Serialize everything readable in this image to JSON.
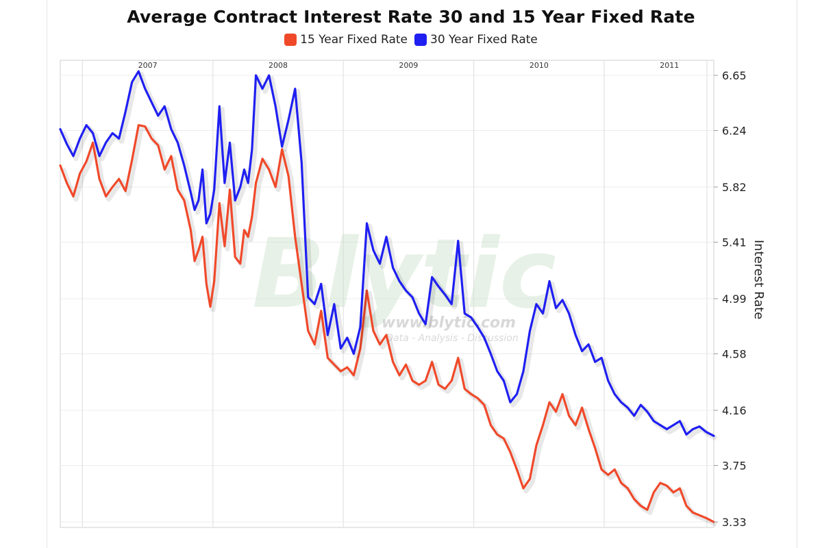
{
  "chart_data": {
    "type": "line",
    "title": "Average Contract Interest Rate 30 and 15 Year Fixed Rate",
    "xlabel": "",
    "ylabel": "Interest Rate",
    "x_tick_labels": [
      "2007",
      "2008",
      "2009",
      "2010",
      "2011"
    ],
    "x_range": [
      2006.83,
      2011.84
    ],
    "y_ticks": [
      "6.65",
      "6.24",
      "5.82",
      "5.41",
      "4.99",
      "4.58",
      "4.16",
      "3.75",
      "3.33"
    ],
    "ylim": [
      3.33,
      6.65
    ],
    "grid": "on",
    "legend_position": "top-center",
    "watermark": [
      "Blytic",
      "www.blytic.com",
      "Data - Analysis - Discussion"
    ],
    "series": [
      {
        "name": "15 Year Fixed Rate",
        "color": "#f0492a",
        "x": [
          2006.83,
          2006.88,
          2006.93,
          2006.98,
          2007.03,
          2007.08,
          2007.13,
          2007.18,
          2007.23,
          2007.28,
          2007.33,
          2007.38,
          2007.43,
          2007.48,
          2007.53,
          2007.58,
          2007.63,
          2007.68,
          2007.73,
          2007.78,
          2007.83,
          2007.86,
          2007.89,
          2007.92,
          2007.95,
          2007.98,
          2008.01,
          2008.05,
          2008.09,
          2008.13,
          2008.17,
          2008.21,
          2008.24,
          2008.27,
          2008.3,
          2008.33,
          2008.38,
          2008.43,
          2008.48,
          2008.53,
          2008.58,
          2008.63,
          2008.68,
          2008.73,
          2008.78,
          2008.83,
          2008.88,
          2008.93,
          2008.98,
          2009.03,
          2009.08,
          2009.13,
          2009.18,
          2009.23,
          2009.28,
          2009.33,
          2009.38,
          2009.43,
          2009.48,
          2009.53,
          2009.58,
          2009.63,
          2009.68,
          2009.73,
          2009.78,
          2009.83,
          2009.88,
          2009.93,
          2009.98,
          2010.03,
          2010.08,
          2010.13,
          2010.18,
          2010.23,
          2010.28,
          2010.33,
          2010.38,
          2010.43,
          2010.48,
          2010.53,
          2010.58,
          2010.63,
          2010.68,
          2010.73,
          2010.78,
          2010.83,
          2010.88,
          2010.93,
          2010.98,
          2011.03,
          2011.08,
          2011.13,
          2011.18,
          2011.23,
          2011.28,
          2011.33,
          2011.38,
          2011.43,
          2011.48,
          2011.53,
          2011.58,
          2011.63,
          2011.68,
          2011.73,
          2011.78,
          2011.84
        ],
        "values": [
          5.98,
          5.85,
          5.75,
          5.92,
          6.01,
          6.15,
          5.88,
          5.75,
          5.82,
          5.88,
          5.79,
          6.02,
          6.28,
          6.27,
          6.18,
          6.13,
          5.95,
          6.05,
          5.8,
          5.72,
          5.5,
          5.27,
          5.35,
          5.45,
          5.1,
          4.93,
          5.12,
          5.7,
          5.38,
          5.8,
          5.3,
          5.25,
          5.5,
          5.45,
          5.6,
          5.85,
          6.03,
          5.95,
          5.82,
          6.1,
          5.9,
          5.45,
          5.1,
          4.75,
          4.65,
          4.9,
          4.55,
          4.5,
          4.45,
          4.48,
          4.42,
          4.62,
          5.05,
          4.75,
          4.65,
          4.72,
          4.52,
          4.42,
          4.5,
          4.38,
          4.35,
          4.38,
          4.52,
          4.35,
          4.32,
          4.38,
          4.55,
          4.32,
          4.28,
          4.25,
          4.2,
          4.05,
          3.98,
          3.95,
          3.85,
          3.72,
          3.58,
          3.65,
          3.9,
          4.05,
          4.22,
          4.15,
          4.28,
          4.12,
          4.05,
          4.18,
          4.02,
          3.88,
          3.72,
          3.68,
          3.72,
          3.62,
          3.58,
          3.5,
          3.45,
          3.42,
          3.55,
          3.62,
          3.6,
          3.55,
          3.58,
          3.45,
          3.4,
          3.38,
          3.36,
          3.33
        ]
      },
      {
        "name": "30 Year Fixed Rate",
        "color": "#1f1ff2",
        "x": [
          2006.83,
          2006.88,
          2006.93,
          2006.98,
          2007.03,
          2007.08,
          2007.13,
          2007.18,
          2007.23,
          2007.28,
          2007.33,
          2007.38,
          2007.43,
          2007.48,
          2007.53,
          2007.58,
          2007.63,
          2007.68,
          2007.73,
          2007.78,
          2007.83,
          2007.86,
          2007.89,
          2007.92,
          2007.95,
          2007.98,
          2008.01,
          2008.05,
          2008.09,
          2008.13,
          2008.17,
          2008.21,
          2008.24,
          2008.27,
          2008.3,
          2008.33,
          2008.38,
          2008.43,
          2008.48,
          2008.53,
          2008.58,
          2008.63,
          2008.68,
          2008.73,
          2008.78,
          2008.83,
          2008.88,
          2008.93,
          2008.98,
          2009.03,
          2009.08,
          2009.13,
          2009.18,
          2009.23,
          2009.28,
          2009.33,
          2009.38,
          2009.43,
          2009.48,
          2009.53,
          2009.58,
          2009.63,
          2009.68,
          2009.73,
          2009.78,
          2009.83,
          2009.88,
          2009.93,
          2009.98,
          2010.03,
          2010.08,
          2010.13,
          2010.18,
          2010.23,
          2010.28,
          2010.33,
          2010.38,
          2010.43,
          2010.48,
          2010.53,
          2010.58,
          2010.63,
          2010.68,
          2010.73,
          2010.78,
          2010.83,
          2010.88,
          2010.93,
          2010.98,
          2011.03,
          2011.08,
          2011.13,
          2011.18,
          2011.23,
          2011.28,
          2011.33,
          2011.38,
          2011.43,
          2011.48,
          2011.53,
          2011.58,
          2011.63,
          2011.68,
          2011.73,
          2011.78,
          2011.84
        ],
        "values": [
          6.25,
          6.14,
          6.05,
          6.18,
          6.28,
          6.22,
          6.05,
          6.15,
          6.22,
          6.18,
          6.38,
          6.6,
          6.68,
          6.55,
          6.45,
          6.35,
          6.42,
          6.25,
          6.15,
          5.98,
          5.78,
          5.65,
          5.72,
          5.95,
          5.55,
          5.62,
          5.8,
          6.42,
          5.85,
          6.15,
          5.72,
          5.82,
          5.95,
          5.85,
          6.1,
          6.65,
          6.55,
          6.65,
          6.42,
          6.12,
          6.32,
          6.55,
          6.0,
          5.0,
          4.95,
          5.1,
          4.72,
          4.95,
          4.62,
          4.7,
          4.58,
          4.78,
          5.55,
          5.35,
          5.25,
          5.45,
          5.22,
          5.12,
          5.05,
          5.0,
          4.88,
          4.8,
          5.15,
          5.08,
          5.02,
          4.95,
          5.42,
          4.88,
          4.85,
          4.78,
          4.7,
          4.58,
          4.45,
          4.38,
          4.22,
          4.28,
          4.45,
          4.75,
          4.95,
          4.88,
          5.12,
          4.92,
          4.98,
          4.88,
          4.72,
          4.6,
          4.65,
          4.52,
          4.55,
          4.38,
          4.28,
          4.22,
          4.18,
          4.12,
          4.2,
          4.15,
          4.08,
          4.05,
          4.02,
          4.05,
          4.08,
          3.98,
          4.02,
          4.04,
          4.0,
          3.97
        ]
      }
    ]
  }
}
